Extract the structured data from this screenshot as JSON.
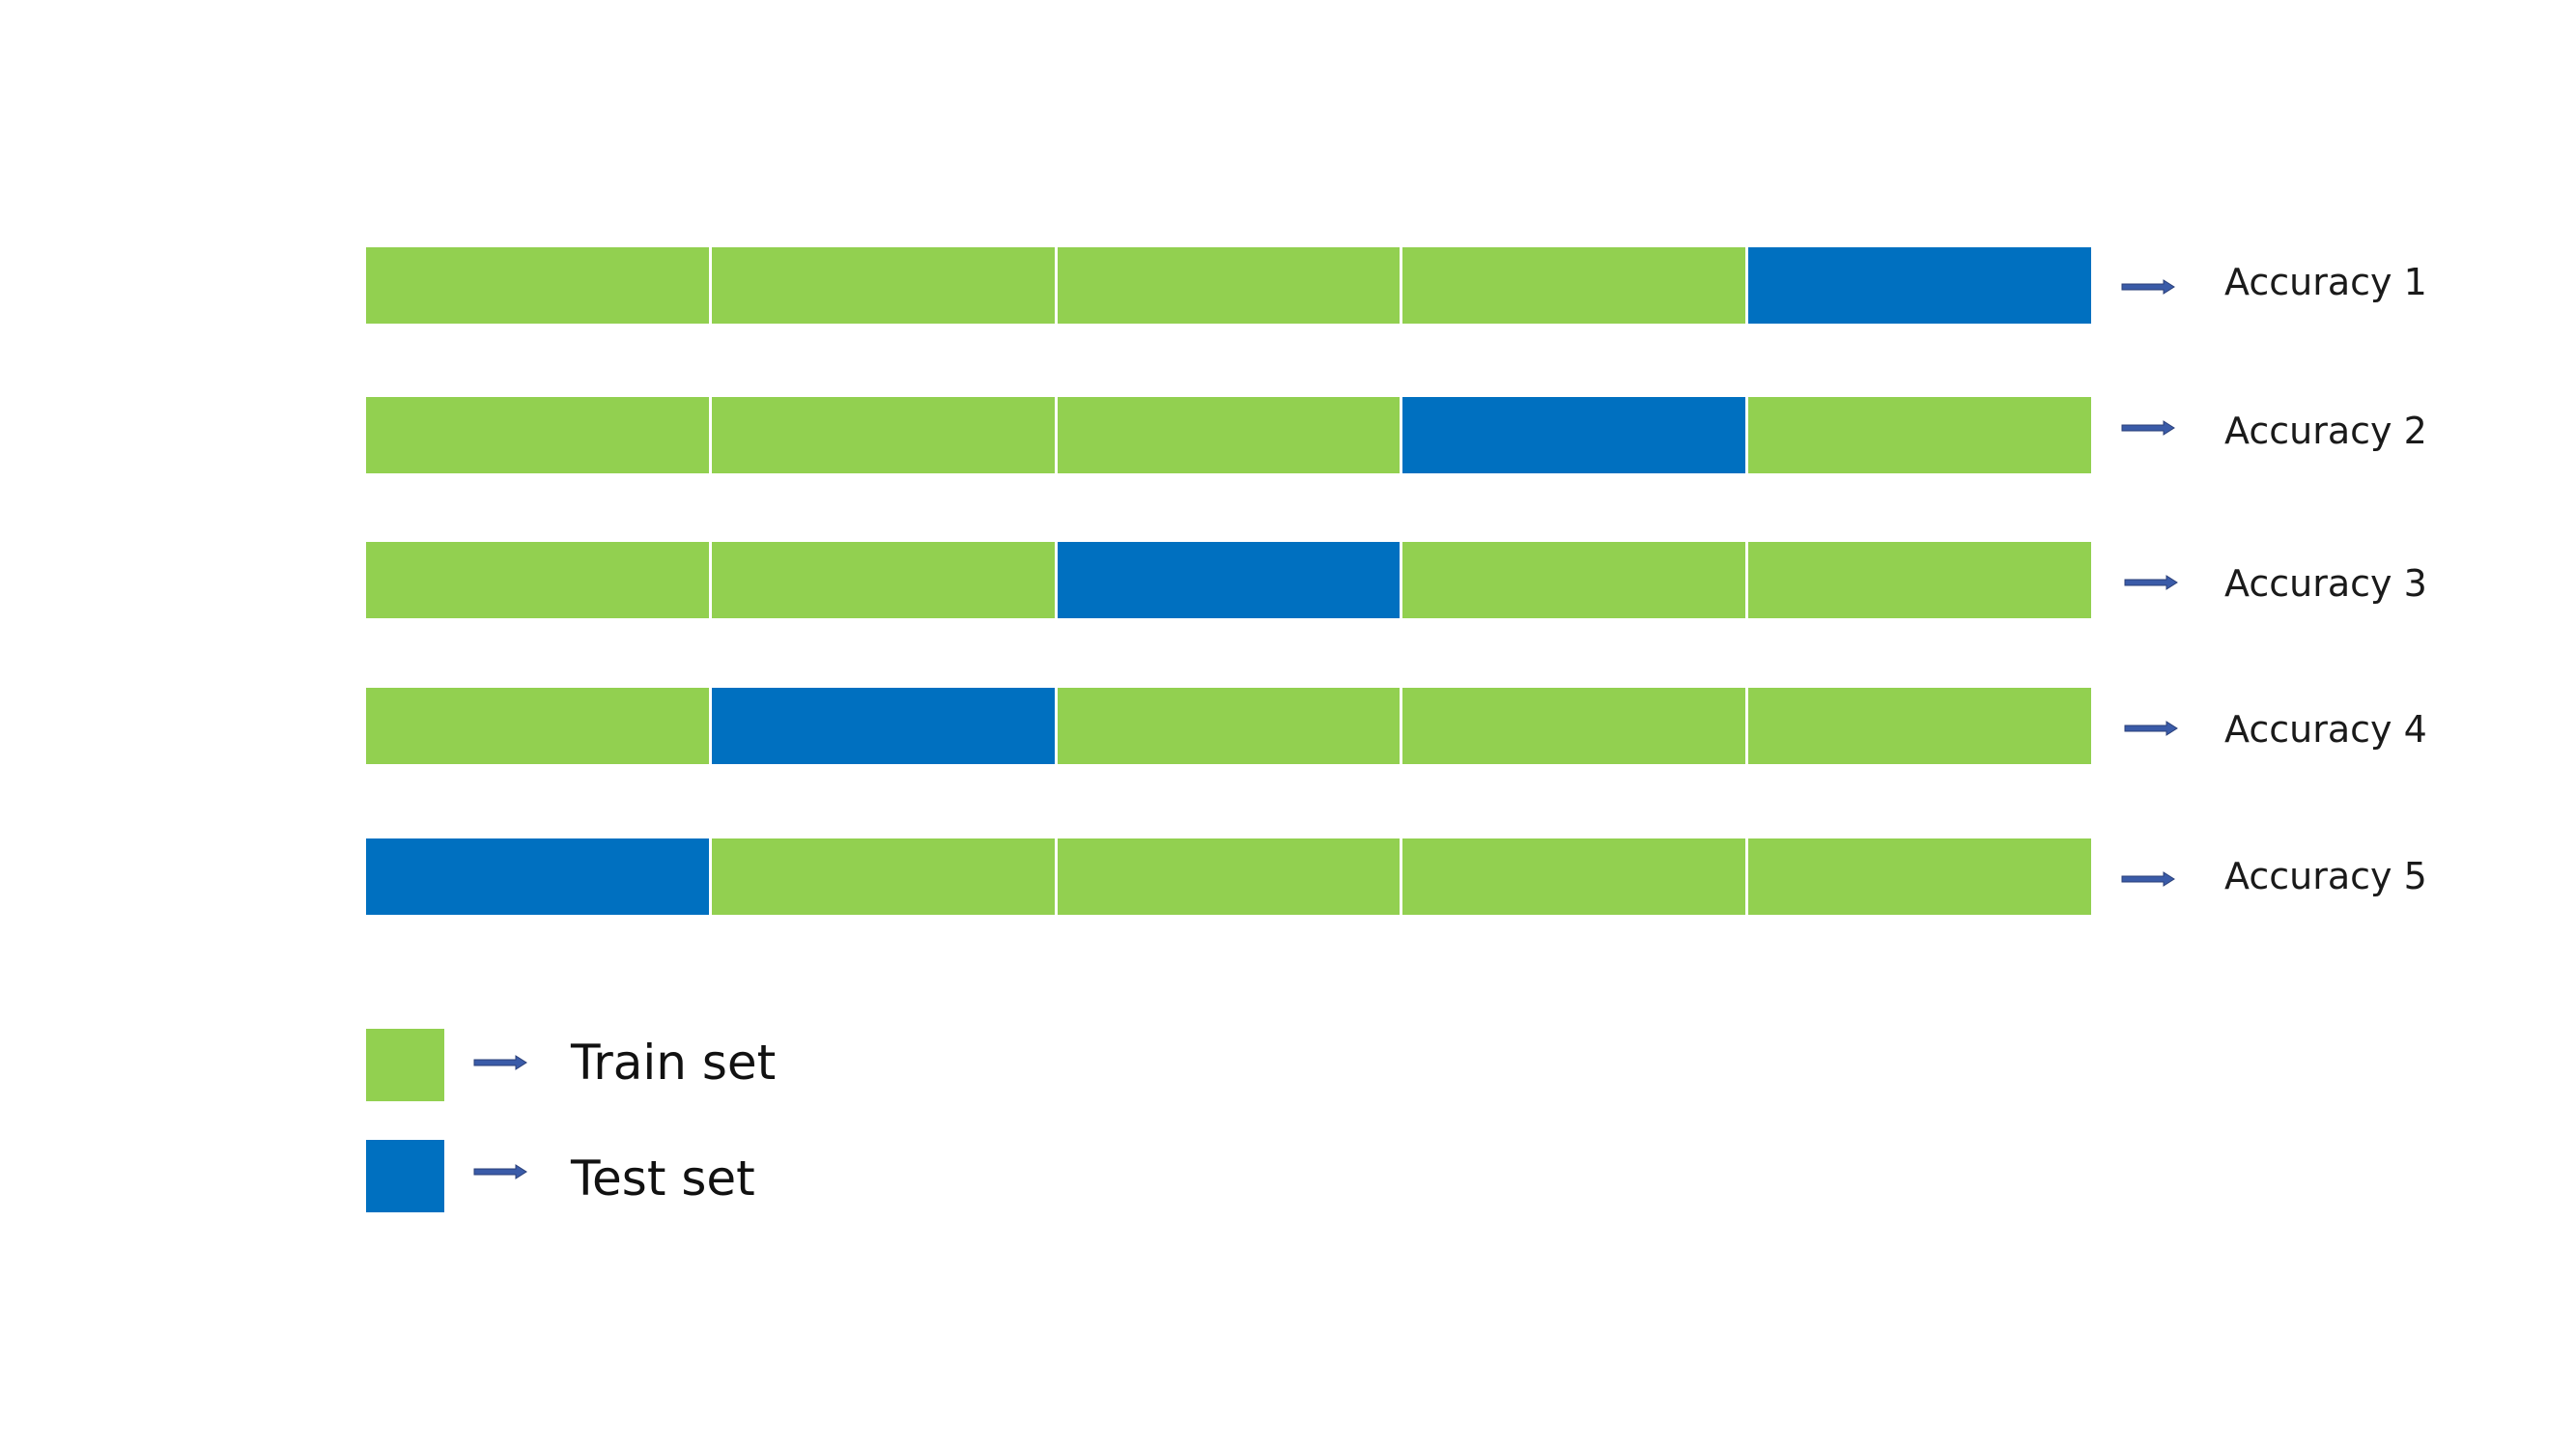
{
  "colors": {
    "train": "#92d050",
    "test": "#0070c0",
    "arrow": "#3a5ba8",
    "arrow_edge": "#2a3f78"
  },
  "folds": [
    {
      "label": "Accuracy 1",
      "test_index": 4
    },
    {
      "label": "Accuracy 2",
      "test_index": 3
    },
    {
      "label": "Accuracy 3",
      "test_index": 2
    },
    {
      "label": "Accuracy 4",
      "test_index": 1
    },
    {
      "label": "Accuracy 5",
      "test_index": 0
    }
  ],
  "segments_per_fold": 5,
  "legend": {
    "train_label": "Train set",
    "test_label": "Test set"
  },
  "icons": {
    "row_arrow": "arrow-right-icon",
    "legend_arrow": "arrow-right-icon"
  }
}
